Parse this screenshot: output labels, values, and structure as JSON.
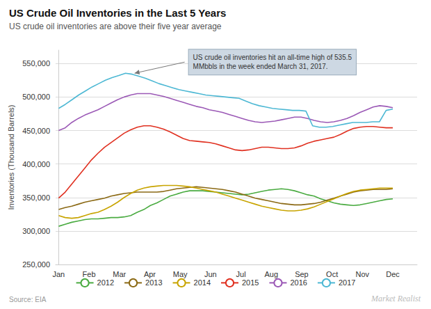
{
  "chart_data": {
    "type": "line",
    "title": "US Crude Oil Inventories in the Last 5 Years",
    "subtitle": "US crude oil inventories are above their five year average",
    "ylabel": "Inventories (Thousand Barrels)",
    "source": "Source: EIA",
    "watermark": "Market Realist",
    "annotations": [
      {
        "text": "US crude oil inventories hit an all-time high of 535.5\nMMbbls in the week ended March 31, 2017.",
        "x": 2.5,
        "y": 535500
      }
    ],
    "xlim": [
      -0.1,
      11.8
    ],
    "xticks": [
      {
        "value": 0,
        "label": "Jan"
      },
      {
        "value": 1,
        "label": "Feb"
      },
      {
        "value": 2,
        "label": "Mar"
      },
      {
        "value": 3,
        "label": "Apr"
      },
      {
        "value": 4,
        "label": "May"
      },
      {
        "value": 5,
        "label": "Jun"
      },
      {
        "value": 6,
        "label": "Jul"
      },
      {
        "value": 7,
        "label": "Aug"
      },
      {
        "value": 8,
        "label": "Sep"
      },
      {
        "value": 9,
        "label": "Oct"
      },
      {
        "value": 10,
        "label": "Nov"
      },
      {
        "value": 11,
        "label": "Dec"
      }
    ],
    "ylim": [
      250000,
      570000
    ],
    "yticks": [
      {
        "value": 250000,
        "label": "250,000"
      },
      {
        "value": 300000,
        "label": "300,000"
      },
      {
        "value": 350000,
        "label": "350,000"
      },
      {
        "value": 400000,
        "label": "400,000"
      },
      {
        "value": 450000,
        "label": "450,000"
      },
      {
        "value": 500000,
        "label": "500,000"
      },
      {
        "value": 550000,
        "label": "550,000"
      }
    ],
    "grid": true,
    "legend": "bottom",
    "series": [
      {
        "name": "2012",
        "color": "#4aab41",
        "x": [
          0,
          0.2157,
          0.4314,
          0.6471,
          0.8627,
          1.0784,
          1.2941,
          1.5098,
          1.7255,
          1.9412,
          2.1569,
          2.3725,
          2.5882,
          2.8039,
          3.0196,
          3.2353,
          3.451,
          3.6667,
          3.8824,
          4.098,
          4.3137,
          4.5294,
          4.7451,
          4.9608,
          5.1765,
          5.3922,
          5.6078,
          5.8235,
          6.0392,
          6.2549,
          6.4706,
          6.6863,
          6.902,
          7.1176,
          7.3333,
          7.549,
          7.7647,
          7.9804,
          8.1961,
          8.4118,
          8.6275,
          8.8431,
          9.0588,
          9.2745,
          9.4902,
          9.7059,
          9.9216,
          10.1373,
          10.3529,
          10.5686,
          10.7843,
          11
        ],
        "values": [
          307000,
          310000,
          313000,
          315000,
          317000,
          318000,
          318000,
          319000,
          320000,
          320000,
          321000,
          323000,
          328000,
          332000,
          338000,
          342000,
          347000,
          352000,
          355000,
          358000,
          360000,
          360000,
          360000,
          359000,
          358000,
          357000,
          356000,
          355000,
          354000,
          355000,
          357000,
          359000,
          361000,
          362000,
          363000,
          362000,
          360000,
          357000,
          354000,
          352000,
          348000,
          345000,
          342000,
          340000,
          339000,
          338000,
          339000,
          341000,
          343000,
          345000,
          347000,
          348000
        ]
      },
      {
        "name": "2013",
        "color": "#8b6914",
        "x": [
          0,
          0.2157,
          0.4314,
          0.6471,
          0.8627,
          1.0784,
          1.2941,
          1.5098,
          1.7255,
          1.9412,
          2.1569,
          2.3725,
          2.5882,
          2.8039,
          3.0196,
          3.2353,
          3.451,
          3.6667,
          3.8824,
          4.098,
          4.3137,
          4.5294,
          4.7451,
          4.9608,
          5.1765,
          5.3922,
          5.6078,
          5.8235,
          6.0392,
          6.2549,
          6.4706,
          6.6863,
          6.902,
          7.1176,
          7.3333,
          7.549,
          7.7647,
          7.9804,
          8.1961,
          8.4118,
          8.6275,
          8.8431,
          9.0588,
          9.2745,
          9.4902,
          9.7059,
          9.9216,
          10.1373,
          10.3529,
          10.5686,
          10.7843,
          11
        ],
        "values": [
          332000,
          335000,
          337000,
          340000,
          343000,
          345000,
          347000,
          349000,
          352000,
          354000,
          356000,
          357000,
          358000,
          358000,
          358000,
          358000,
          359000,
          361000,
          363000,
          364000,
          365000,
          366000,
          365000,
          364000,
          363000,
          362000,
          360000,
          358000,
          355000,
          352000,
          349000,
          347000,
          345000,
          343000,
          341000,
          340000,
          339000,
          339000,
          340000,
          341000,
          343000,
          346000,
          349000,
          352000,
          355000,
          358000,
          360000,
          361000,
          362000,
          362000,
          362000,
          363000
        ]
      },
      {
        "name": "2014",
        "color": "#c8a400",
        "x": [
          0,
          0.2157,
          0.4314,
          0.6471,
          0.8627,
          1.0784,
          1.2941,
          1.5098,
          1.7255,
          1.9412,
          2.1569,
          2.3725,
          2.5882,
          2.8039,
          3.0196,
          3.2353,
          3.451,
          3.6667,
          3.8824,
          4.098,
          4.3137,
          4.5294,
          4.7451,
          4.9608,
          5.1765,
          5.3922,
          5.6078,
          5.8235,
          6.0392,
          6.2549,
          6.4706,
          6.6863,
          6.902,
          7.1176,
          7.3333,
          7.549,
          7.7647,
          7.9804,
          8.1961,
          8.4118,
          8.6275,
          8.8431,
          9.0588,
          9.2745,
          9.4902,
          9.7059,
          9.9216,
          10.1373,
          10.3529,
          10.5686,
          10.7843,
          11
        ],
        "values": [
          323000,
          320000,
          319000,
          320000,
          323000,
          326000,
          328000,
          332000,
          337000,
          343000,
          350000,
          356000,
          361000,
          364000,
          366000,
          367000,
          368000,
          368000,
          368000,
          367000,
          366000,
          364000,
          362000,
          360000,
          358000,
          355000,
          352000,
          349000,
          346000,
          343000,
          340000,
          337000,
          335000,
          333000,
          331000,
          330000,
          330000,
          331000,
          333000,
          336000,
          340000,
          344000,
          348000,
          352000,
          356000,
          359000,
          361000,
          362000,
          363000,
          364000,
          364000,
          364000
        ]
      },
      {
        "name": "2015",
        "color": "#e03020",
        "x": [
          0,
          0.2157,
          0.4314,
          0.6471,
          0.8627,
          1.0784,
          1.2941,
          1.5098,
          1.7255,
          1.9412,
          2.1569,
          2.3725,
          2.5882,
          2.8039,
          3.0196,
          3.2353,
          3.451,
          3.6667,
          3.8824,
          4.098,
          4.3137,
          4.5294,
          4.7451,
          4.9608,
          5.1765,
          5.3922,
          5.6078,
          5.8235,
          6.0392,
          6.2549,
          6.4706,
          6.6863,
          6.902,
          7.1176,
          7.3333,
          7.549,
          7.7647,
          7.9804,
          8.1961,
          8.4118,
          8.6275,
          8.8431,
          9.0588,
          9.2745,
          9.4902,
          9.7059,
          9.9216,
          10.1373,
          10.3529,
          10.5686,
          10.7843,
          11
        ],
        "values": [
          349000,
          358000,
          370000,
          382000,
          394000,
          406000,
          416000,
          425000,
          432000,
          439000,
          446000,
          451000,
          455000,
          457000,
          457000,
          455000,
          452000,
          448000,
          443000,
          438000,
          435000,
          434000,
          433000,
          432000,
          430000,
          427000,
          424000,
          421000,
          420000,
          421000,
          423000,
          425000,
          425000,
          424000,
          423000,
          423000,
          424000,
          427000,
          431000,
          434000,
          436000,
          438000,
          440000,
          444000,
          449000,
          453000,
          455000,
          456000,
          456000,
          455000,
          454000,
          454000
        ]
      },
      {
        "name": "2016",
        "color": "#9b59b6",
        "x": [
          0,
          0.2157,
          0.4314,
          0.6471,
          0.8627,
          1.0784,
          1.2941,
          1.5098,
          1.7255,
          1.9412,
          2.1569,
          2.3725,
          2.5882,
          2.8039,
          3.0196,
          3.2353,
          3.451,
          3.6667,
          3.8824,
          4.098,
          4.3137,
          4.5294,
          4.7451,
          4.9608,
          5.1765,
          5.3922,
          5.6078,
          5.8235,
          6.0392,
          6.2549,
          6.4706,
          6.6863,
          6.902,
          7.1176,
          7.3333,
          7.549,
          7.7647,
          7.9804,
          8.1961,
          8.4118,
          8.6275,
          8.8431,
          9.0588,
          9.2745,
          9.4902,
          9.7059,
          9.9216,
          10.1373,
          10.3529,
          10.5686,
          10.7843,
          11
        ],
        "values": [
          450000,
          454000,
          462000,
          468000,
          473000,
          477000,
          481000,
          486000,
          491000,
          496000,
          500000,
          503000,
          505000,
          505000,
          505000,
          503000,
          501000,
          498000,
          495000,
          492000,
          489000,
          486000,
          484000,
          481000,
          479000,
          477000,
          474000,
          471000,
          468000,
          465000,
          463000,
          462000,
          463000,
          464000,
          466000,
          468000,
          470000,
          470000,
          468000,
          465000,
          463000,
          462000,
          463000,
          465000,
          468000,
          472000,
          477000,
          481000,
          485000,
          487000,
          486000,
          484000
        ]
      },
      {
        "name": "2017",
        "color": "#4db8d4",
        "x": [
          0,
          0.22,
          0.44,
          0.66,
          0.88,
          1.1,
          1.32,
          1.54,
          1.76,
          1.98,
          2.2,
          2.42,
          2.64,
          2.86,
          3.08,
          3.3,
          3.52,
          3.74,
          3.96,
          4.18,
          4.4,
          4.62,
          4.84,
          5.06,
          5.28,
          5.5,
          5.72,
          5.94,
          6.16,
          6.38,
          6.6,
          6.82,
          7.04,
          7.26,
          7.48,
          7.7,
          7.92,
          8.14,
          8.36,
          8.58,
          8.8,
          9.02,
          9.24,
          9.46,
          9.68,
          9.9,
          10.12,
          10.34,
          10.56,
          10.78,
          11
        ],
        "values": [
          483000,
          489000,
          496000,
          503000,
          509000,
          515000,
          520000,
          525000,
          529000,
          532000,
          535500,
          534000,
          531000,
          528000,
          524000,
          520000,
          517000,
          514000,
          511000,
          509000,
          507000,
          505000,
          503000,
          502000,
          501000,
          500000,
          499000,
          498000,
          494000,
          490000,
          487000,
          485000,
          483000,
          482000,
          481000,
          480000,
          480000,
          479000,
          457000,
          455000,
          455000,
          456000,
          458000,
          460000,
          462000,
          462000,
          462000,
          463000,
          463000,
          480000,
          482000
        ]
      }
    ]
  }
}
